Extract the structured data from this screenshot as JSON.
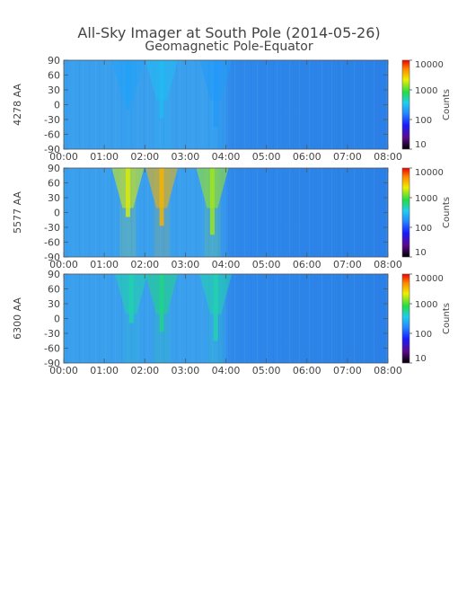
{
  "title": "All-Sky Imager at South Pole (2014-05-26)",
  "subtitle": "Geomagnetic Pole-Equator",
  "chart_data": [
    {
      "type": "heatmap",
      "ylabel": "4278 AA",
      "x_ticks": [
        "00:00",
        "01:00",
        "02:00",
        "03:00",
        "04:00",
        "05:00",
        "06:00",
        "07:00",
        "08:00"
      ],
      "y_ticks": [
        90,
        60,
        30,
        0,
        -30,
        -60,
        -90
      ],
      "ylim": [
        -90,
        90
      ],
      "xlim": [
        "00:00",
        "08:00"
      ],
      "colorbar": {
        "label": "Counts",
        "scale": "log",
        "ticks": [
          10,
          100,
          1000,
          10000
        ]
      },
      "bright_events": [
        {
          "time": "01:35",
          "peak_counts": 220
        },
        {
          "time": "02:25",
          "peak_counts": 300
        },
        {
          "time": "03:45",
          "peak_counts": 200
        }
      ],
      "background_counts": {
        "before_04:00": 140,
        "after_04:00": 90
      }
    },
    {
      "type": "heatmap",
      "ylabel": "5577 AA",
      "x_ticks": [
        "00:00",
        "01:00",
        "02:00",
        "03:00",
        "04:00",
        "05:00",
        "06:00",
        "07:00",
        "08:00"
      ],
      "y_ticks": [
        90,
        60,
        30,
        0,
        -30,
        -60,
        -90
      ],
      "ylim": [
        -90,
        90
      ],
      "xlim": [
        "00:00",
        "08:00"
      ],
      "colorbar": {
        "label": "Counts",
        "scale": "log",
        "ticks": [
          10,
          100,
          1000,
          10000
        ]
      },
      "bright_events": [
        {
          "time": "01:35",
          "peak_counts": 2000
        },
        {
          "time": "02:25",
          "peak_counts": 3500
        },
        {
          "time": "03:40",
          "peak_counts": 1500
        }
      ],
      "background_counts": {
        "before_04:00": 200,
        "after_04:00": 140
      }
    },
    {
      "type": "heatmap",
      "ylabel": "6300 AA",
      "x_ticks": [
        "00:00",
        "01:00",
        "02:00",
        "03:00",
        "04:00",
        "05:00",
        "06:00",
        "07:00",
        "08:00"
      ],
      "y_ticks": [
        90,
        60,
        30,
        0,
        -30,
        -60,
        -90
      ],
      "ylim": [
        -90,
        90
      ],
      "xlim": [
        "00:00",
        "08:00"
      ],
      "colorbar": {
        "label": "Counts",
        "scale": "log",
        "ticks": [
          10,
          100,
          1000,
          10000
        ]
      },
      "bright_events": [
        {
          "time": "01:40",
          "peak_counts": 500
        },
        {
          "time": "02:25",
          "peak_counts": 600
        },
        {
          "time": "03:45",
          "peak_counts": 500
        }
      ],
      "background_counts": {
        "before_04:00": 200,
        "after_04:00": 150
      }
    }
  ]
}
